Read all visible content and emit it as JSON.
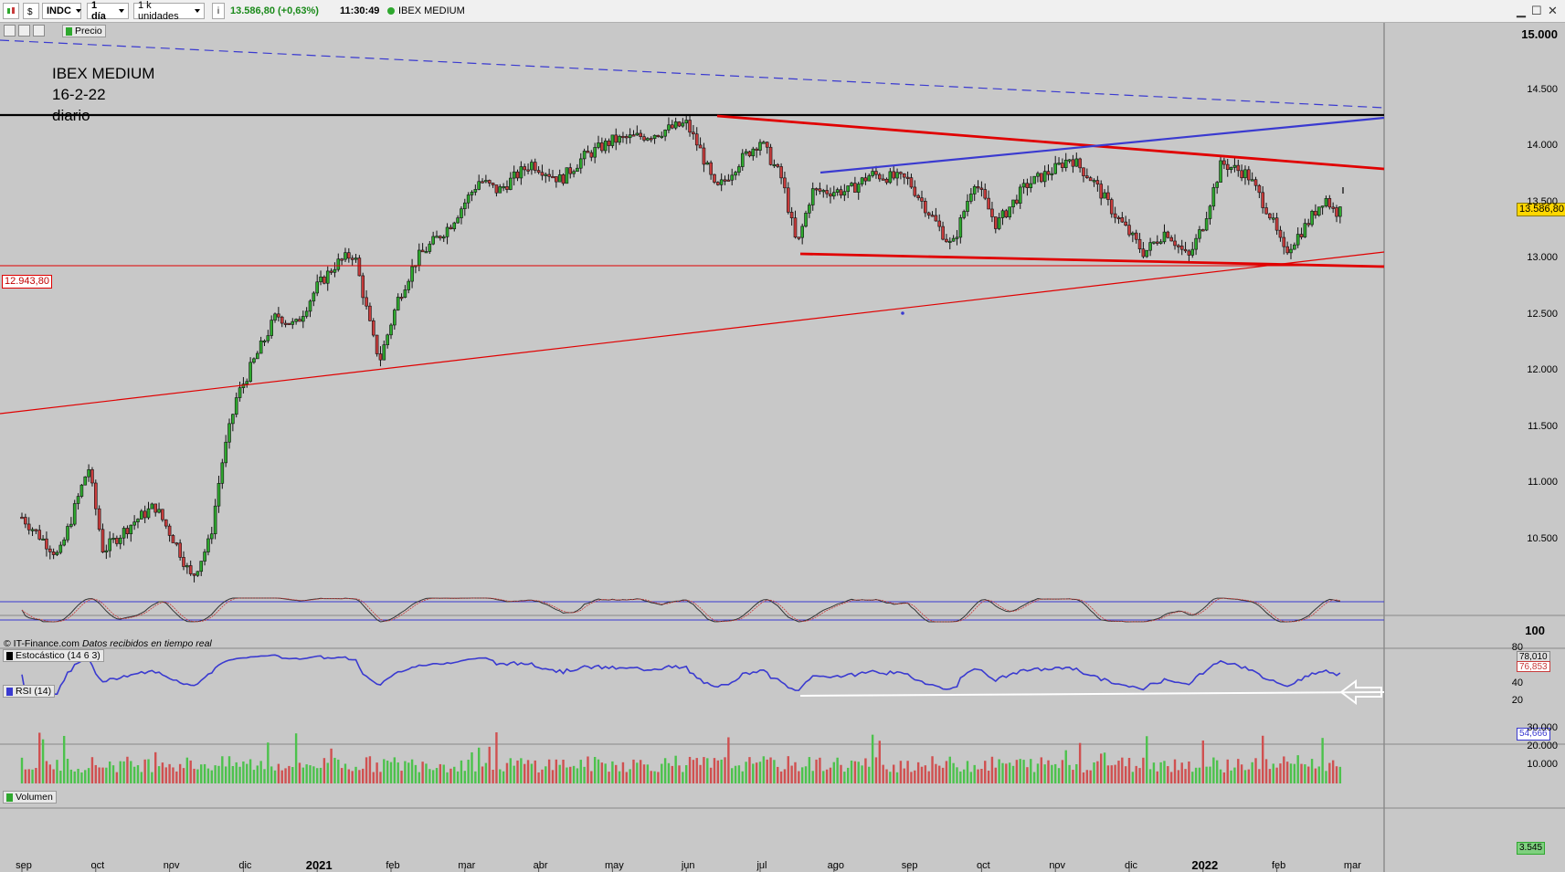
{
  "toolbar": {
    "symbol": "INDC",
    "interval": "1 día",
    "units": "1 k unidades",
    "quote": "13.586,80 (+0,63%)",
    "time": "11:30:49",
    "name": "IBEX MEDIUM"
  },
  "subbar": {
    "series_label": "Precio"
  },
  "annotation": {
    "line1": "IBEX MEDIUM",
    "line2": "16-2-22",
    "line3": "diario"
  },
  "copyright": {
    "source": "© IT-Finance.com",
    "note": "Datos recibidos en tiempo real"
  },
  "panels": {
    "stoch_label": "Estocástico (14 6 3)",
    "rsi_label": "RSI (14)",
    "volume_label": "Volumen"
  },
  "tags": {
    "last_price": "13.586,80",
    "support_level": "12.943,80",
    "stoch_k": "78,010",
    "stoch_d": "76,853",
    "rsi_value": "54,666",
    "volume_value": "3.545"
  },
  "colors": {
    "up": "#2ea82e",
    "down": "#c83c3c",
    "resistance": "#e00000",
    "trend_blue": "#3a3ad0",
    "background": "#c8c8c8"
  },
  "chart_data": [
    {
      "type": "candlestick",
      "title": "",
      "y_axis_ticks": [
        "15.000",
        "14.500",
        "14.000",
        "13.500",
        "13.000",
        "12.500",
        "12.000",
        "11.500",
        "11.000",
        "10.500"
      ],
      "ylim": [
        10200,
        15100
      ],
      "x_axis_months": [
        "sep",
        "oct",
        "nov",
        "dic",
        "2021",
        "feb",
        "mar",
        "abr",
        "may",
        "jun",
        "jul",
        "ago",
        "sep",
        "oct",
        "nov",
        "dic",
        "2022",
        "feb",
        "mar"
      ],
      "path_points": [
        {
          "month": 0.0,
          "close": 10700
        },
        {
          "month": 0.5,
          "close": 10350
        },
        {
          "month": 0.9,
          "close": 11150
        },
        {
          "month": 1.1,
          "close": 10400
        },
        {
          "month": 1.5,
          "close": 10650
        },
        {
          "month": 1.8,
          "close": 10800
        },
        {
          "month": 2.1,
          "close": 10450
        },
        {
          "month": 2.3,
          "close": 10150
        },
        {
          "month": 2.55,
          "close": 10500
        },
        {
          "month": 2.7,
          "close": 11150
        },
        {
          "month": 2.9,
          "close": 11750
        },
        {
          "month": 3.15,
          "close": 12100
        },
        {
          "month": 3.45,
          "close": 12500
        },
        {
          "month": 3.7,
          "close": 12400
        },
        {
          "month": 4.0,
          "close": 12750
        },
        {
          "month": 4.25,
          "close": 12950
        },
        {
          "month": 4.5,
          "close": 13050
        },
        {
          "month": 4.75,
          "close": 12300
        },
        {
          "month": 4.85,
          "close": 12100
        },
        {
          "month": 5.1,
          "close": 12650
        },
        {
          "month": 5.35,
          "close": 13000
        },
        {
          "month": 5.8,
          "close": 13300
        },
        {
          "month": 6.2,
          "close": 13700
        },
        {
          "month": 6.45,
          "close": 13600
        },
        {
          "month": 6.9,
          "close": 13850
        },
        {
          "month": 7.3,
          "close": 13700
        },
        {
          "month": 7.6,
          "close": 13900
        },
        {
          "month": 8.0,
          "close": 14050
        },
        {
          "month": 8.5,
          "close": 14100
        },
        {
          "month": 9.0,
          "close": 14200
        },
        {
          "month": 9.2,
          "close": 13950
        },
        {
          "month": 9.4,
          "close": 13600
        },
        {
          "month": 9.7,
          "close": 13850
        },
        {
          "month": 10.0,
          "close": 14050
        },
        {
          "month": 10.3,
          "close": 13700
        },
        {
          "month": 10.5,
          "close": 13100
        },
        {
          "month": 10.7,
          "close": 13600
        },
        {
          "month": 11.2,
          "close": 13600
        },
        {
          "month": 11.5,
          "close": 13750
        },
        {
          "month": 12.0,
          "close": 13700
        },
        {
          "month": 12.4,
          "close": 13300
        },
        {
          "month": 12.6,
          "close": 13100
        },
        {
          "month": 12.9,
          "close": 13700
        },
        {
          "month": 13.2,
          "close": 13300
        },
        {
          "month": 13.6,
          "close": 13650
        },
        {
          "month": 14.0,
          "close": 13800
        },
        {
          "month": 14.2,
          "close": 13900
        },
        {
          "month": 14.5,
          "close": 13700
        },
        {
          "month": 14.8,
          "close": 13400
        },
        {
          "month": 15.2,
          "close": 13050
        },
        {
          "month": 15.5,
          "close": 13250
        },
        {
          "month": 15.8,
          "close": 13000
        },
        {
          "month": 16.0,
          "close": 13300
        },
        {
          "month": 16.25,
          "close": 13850
        },
        {
          "month": 16.6,
          "close": 13750
        },
        {
          "month": 16.9,
          "close": 13400
        },
        {
          "month": 17.1,
          "close": 13050
        },
        {
          "month": 17.4,
          "close": 13300
        },
        {
          "month": 17.65,
          "close": 13550
        },
        {
          "month": 17.8,
          "close": 13400
        },
        {
          "month": 17.9,
          "close": 13587
        }
      ],
      "horizontal_lines": [
        {
          "value": 14250,
          "color": "#000000",
          "name": "techo"
        },
        {
          "value": 12944,
          "color": "#e00000",
          "name": "soporte"
        }
      ]
    },
    {
      "type": "line",
      "title": "Estocástico (14 6 3)",
      "ylim": [
        0,
        100
      ],
      "series": [
        {
          "name": "%K",
          "last": 78.01
        },
        {
          "name": "%D",
          "last": 76.853
        }
      ]
    },
    {
      "type": "line",
      "title": "RSI (14)",
      "y_axis_ticks": [
        "100",
        "80",
        "40",
        "20"
      ],
      "ylim": [
        15,
        100
      ],
      "series": [
        {
          "name": "RSI",
          "last": 54.666
        }
      ]
    },
    {
      "type": "bar",
      "title": "Volumen",
      "y_axis_ticks": [
        "30.000",
        "20.000",
        "10.000"
      ],
      "ylim": [
        0,
        31000
      ],
      "series": [
        {
          "name": "Volumen",
          "last": 3545
        }
      ]
    }
  ]
}
